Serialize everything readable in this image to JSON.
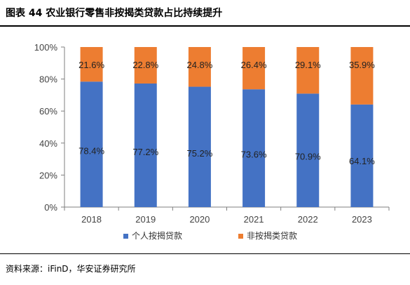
{
  "title": "图表 44  农业银行零售非按揭类贷款占比持续提升",
  "source": "资料来源：iFinD，华安证券研究所",
  "colors": {
    "series_a": "#4472C4",
    "series_b": "#ED7D31",
    "axis": "#7f7f7f"
  },
  "chart_data": {
    "type": "bar",
    "stacked": true,
    "categories": [
      "2018",
      "2019",
      "2020",
      "2021",
      "2022",
      "2023"
    ],
    "series": [
      {
        "name": "个人按揭贷款",
        "values": [
          78.4,
          77.2,
          75.2,
          73.6,
          70.9,
          64.1
        ],
        "labels": [
          "78.4%",
          "77.2%",
          "75.2%",
          "73.6%",
          "70.9%",
          "64.1%"
        ]
      },
      {
        "name": "非按揭类贷款",
        "values": [
          21.6,
          22.8,
          24.8,
          26.4,
          29.1,
          35.9
        ],
        "labels": [
          "21.6%",
          "22.8%",
          "24.8%",
          "26.4%",
          "29.1%",
          "35.9%"
        ]
      }
    ],
    "y_ticks": [
      "0%",
      "20%",
      "40%",
      "60%",
      "80%",
      "100%"
    ],
    "ylim": [
      0,
      100
    ],
    "grid": false,
    "legend_position": "bottom"
  }
}
